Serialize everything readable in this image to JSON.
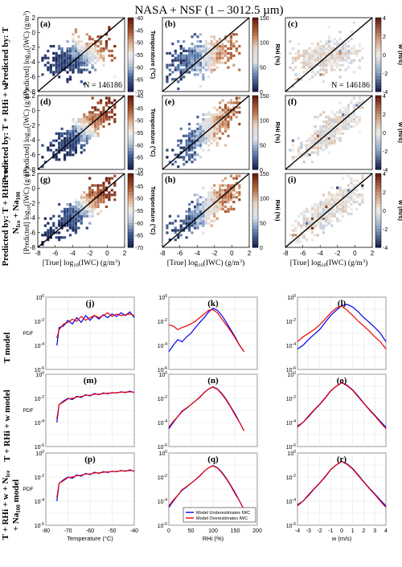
{
  "figure": {
    "title": "NASA + NSF (1 – 3012.5 µm)",
    "row_labels": [
      "Predicted by: T",
      "Predicted by: T + RHi + w",
      "Predicted by: T + RHi + w +",
      "N",
      "Ice",
      " + Na",
      "100",
      "T model",
      "T + RHi + w model",
      "T + RHi + w + N",
      "Ice",
      " + Na",
      "100",
      " model"
    ],
    "heatmap_ylabel": "[Predicted] log",
    "heatmap_ylabel_sub": "10",
    "heatmap_ylabel_tail": "(IWC) (g/m",
    "heatmap_ylabel_sup": "3",
    "heatmap_ylabel_end": ")",
    "heatmap_xlabel": "[True] log",
    "heatmap_xlabel_sub": "10",
    "heatmap_xlabel_tail": "(IWC) (g/m",
    "heatmap_xlabel_sup": "3",
    "heatmap_xlabel_end": ")",
    "n_label": "N = 146186",
    "colorbars": [
      {
        "label": "Temperature (°C)",
        "ticks": [
          "-40",
          "-45",
          "-50",
          "-55",
          "-60",
          "-65",
          "-70"
        ],
        "colors": [
          "#6a1f12",
          "#a4512d",
          "#d9a887",
          "#f2efe9",
          "#b4c4d8",
          "#3e5d95",
          "#1c2452"
        ]
      },
      {
        "label": "RHi (%)",
        "ticks": [
          "150",
          "100",
          "50",
          "0"
        ],
        "colors": [
          "#6a1f12",
          "#b86a3d",
          "#e8d3c2",
          "#dde4ee",
          "#5c7eb0",
          "#1c2452"
        ]
      },
      {
        "label": "w (m/s)",
        "ticks": [
          "4",
          "2",
          "0",
          "-2",
          "-4"
        ],
        "colors": [
          "#6a1f12",
          "#c78e6e",
          "#f2efe9",
          "#8ea6c7",
          "#1c2452"
        ]
      }
    ],
    "panel_letters": [
      "(a)",
      "(b)",
      "(c)",
      "(d)",
      "(e)",
      "(f)",
      "(g)",
      "(h)",
      "(i)",
      "(j)",
      "(k)",
      "(l)",
      "(m)",
      "(n)",
      "(o)",
      "(p)",
      "(q)",
      "(r)"
    ],
    "pdf_ylabel": "PDF",
    "pdf_xlabels": [
      "Temperature (°C)",
      "RHi (%)",
      "w (m/s)"
    ],
    "legend": [
      "Model Underestimates IWC",
      "Model Overestimates IWC"
    ]
  },
  "chart_data": [
    {
      "type": "heatmap",
      "panels": [
        "(a)",
        "(b)",
        "(c)",
        "(d)",
        "(e)",
        "(f)",
        "(g)",
        "(h)",
        "(i)"
      ],
      "x_axis": {
        "label": "[True] log10(IWC) (g/m3)",
        "range": [
          -8,
          2
        ],
        "ticks": [
          -8,
          -6,
          -4,
          -2,
          0,
          2
        ]
      },
      "y_axis": {
        "label": "[Predicted] log10(IWC) (g/m3)",
        "range": [
          -8,
          2
        ],
        "ticks": [
          -8,
          -6,
          -4,
          -2,
          0,
          2
        ]
      },
      "reference_line": "1:1",
      "color_variables": [
        "Temperature (°C)",
        "RHi (%)",
        "w (m/s)"
      ],
      "annotation": "N = 146186"
    },
    {
      "type": "line",
      "panels": [
        "(j)",
        "(k)",
        "(l)",
        "(m)",
        "(n)",
        "(o)",
        "(p)",
        "(q)",
        "(r)"
      ],
      "y_axis": {
        "label": "PDF",
        "scale": "log",
        "range": [
          1e-06,
          1
        ],
        "ticks": [
          "10^-6",
          "10^-4",
          "10^-2",
          "10^0"
        ]
      },
      "x_axes": [
        {
          "label": "Temperature (°C)",
          "range": [
            -80,
            -40
          ],
          "ticks": [
            -80,
            -70,
            -60,
            -50,
            -40
          ]
        },
        {
          "label": "RHi (%)",
          "range": [
            0,
            200
          ],
          "ticks": [
            0,
            50,
            100,
            150,
            200
          ]
        },
        {
          "label": "w (m/s)",
          "range": [
            -4,
            4
          ],
          "ticks": [
            -4,
            -3,
            -2,
            -1,
            0,
            1,
            2,
            3,
            4
          ]
        }
      ],
      "series": [
        {
          "name": "Model Underestimates IWC",
          "color": "#0000ee"
        },
        {
          "name": "Model Overestimates IWC",
          "color": "#ee0000"
        }
      ],
      "pdf_curves": {
        "temperature_T_model": {
          "x": [
            -75,
            -74,
            -72,
            -70,
            -68,
            -66,
            -64,
            -62,
            -60,
            -58,
            -56,
            -54,
            -52,
            -50,
            -48,
            -46,
            -44,
            -42,
            -40
          ],
          "under": [
            0.0001,
            0.003,
            0.004,
            0.012,
            0.006,
            0.02,
            0.008,
            0.03,
            0.012,
            0.03,
            0.015,
            0.035,
            0.02,
            0.04,
            0.025,
            0.05,
            0.03,
            0.06,
            0.02
          ],
          "over": [
            0.0004,
            0.002,
            0.006,
            0.008,
            0.015,
            0.01,
            0.025,
            0.012,
            0.02,
            0.03,
            0.02,
            0.03,
            0.05,
            0.025,
            0.04,
            0.03,
            0.035,
            0.04,
            0.03
          ]
        },
        "temperature_full": {
          "x": [
            -75,
            -74,
            -72,
            -70,
            -68,
            -66,
            -64,
            -62,
            -60,
            -58,
            -56,
            -54,
            -52,
            -50,
            -48,
            -46,
            -44,
            -42,
            -40
          ],
          "under": [
            0.0001,
            0.003,
            0.006,
            0.01,
            0.008,
            0.015,
            0.012,
            0.02,
            0.016,
            0.025,
            0.02,
            0.028,
            0.024,
            0.03,
            0.028,
            0.035,
            0.03,
            0.04,
            0.03
          ],
          "over": [
            0.0002,
            0.003,
            0.005,
            0.009,
            0.01,
            0.013,
            0.014,
            0.018,
            0.018,
            0.022,
            0.022,
            0.025,
            0.027,
            0.028,
            0.03,
            0.032,
            0.033,
            0.035,
            0.032
          ]
        },
        "rhi_T_model": {
          "x": [
            0,
            10,
            20,
            30,
            40,
            50,
            60,
            70,
            80,
            90,
            100,
            110,
            120,
            130,
            140,
            150,
            160,
            170
          ],
          "under": [
            3e-05,
            0.0001,
            0.0003,
            0.0002,
            0.0005,
            0.001,
            0.003,
            0.008,
            0.02,
            0.06,
            0.12,
            0.08,
            0.03,
            0.008,
            0.002,
            0.0005,
            0.0001,
            3e-05
          ],
          "over": [
            0.005,
            0.004,
            0.002,
            0.003,
            0.004,
            0.006,
            0.01,
            0.02,
            0.04,
            0.08,
            0.09,
            0.05,
            0.015,
            0.005,
            0.0015,
            0.0004,
            0.0001,
            3e-05
          ]
        },
        "rhi_full": {
          "x": [
            0,
            10,
            20,
            30,
            40,
            50,
            60,
            70,
            80,
            90,
            100,
            110,
            120,
            130,
            140,
            150,
            160,
            170
          ],
          "under": [
            3e-05,
            0.0001,
            0.0003,
            0.0008,
            0.0015,
            0.003,
            0.006,
            0.012,
            0.03,
            0.06,
            0.09,
            0.06,
            0.025,
            0.008,
            0.002,
            0.0005,
            0.0001,
            2e-05
          ],
          "over": [
            4e-05,
            0.00012,
            0.0003,
            0.0009,
            0.0016,
            0.003,
            0.006,
            0.013,
            0.03,
            0.06,
            0.085,
            0.055,
            0.022,
            0.007,
            0.0018,
            0.0004,
            0.0001,
            2e-05
          ]
        },
        "w_T_model": {
          "x": [
            -4,
            -3.5,
            -3,
            -2.5,
            -2,
            -1.5,
            -1,
            -0.5,
            0,
            0.5,
            1,
            1.5,
            2,
            2.5,
            3,
            3.5,
            4
          ],
          "under": [
            5e-05,
            0.0001,
            0.0003,
            0.0008,
            0.002,
            0.008,
            0.03,
            0.08,
            0.2,
            0.25,
            0.15,
            0.06,
            0.02,
            0.008,
            0.003,
            0.001,
            0.0002
          ],
          "over": [
            0.0002,
            0.0005,
            0.001,
            0.002,
            0.005,
            0.015,
            0.05,
            0.12,
            0.18,
            0.08,
            0.03,
            0.01,
            0.004,
            0.0015,
            0.0005,
            0.0002,
            5e-05
          ]
        },
        "w_full": {
          "x": [
            -4,
            -3.5,
            -3,
            -2.5,
            -2,
            -1.5,
            -1,
            -0.5,
            0,
            0.5,
            1,
            1.5,
            2,
            2.5,
            3,
            3.5,
            4
          ],
          "under": [
            5e-05,
            0.0001,
            0.0003,
            0.001,
            0.003,
            0.01,
            0.04,
            0.1,
            0.2,
            0.12,
            0.05,
            0.015,
            0.004,
            0.0012,
            0.0004,
            0.00012,
            4e-05
          ],
          "over": [
            4e-05,
            0.0001,
            0.00035,
            0.0011,
            0.0032,
            0.011,
            0.042,
            0.1,
            0.2,
            0.11,
            0.045,
            0.013,
            0.0037,
            0.0011,
            0.00035,
            0.0001,
            3e-05
          ]
        }
      }
    }
  ]
}
